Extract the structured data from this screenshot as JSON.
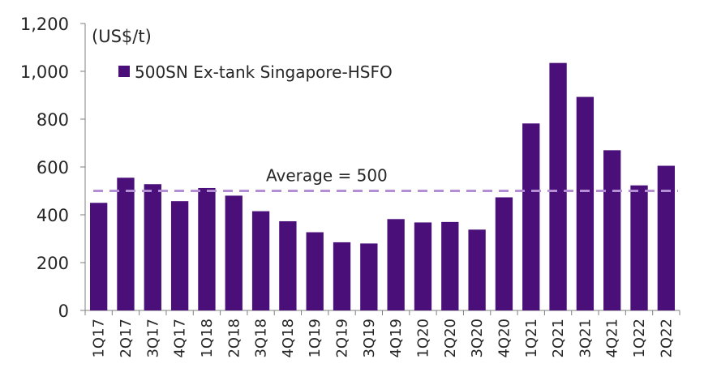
{
  "chart_data": {
    "type": "bar",
    "ylabel": "(US$/t)",
    "ylim": [
      0,
      1200
    ],
    "yticks": [
      "0",
      "200",
      "400",
      "600",
      "800",
      "1,000",
      "1,200"
    ],
    "ytick_values": [
      0,
      200,
      400,
      600,
      800,
      1000,
      1200
    ],
    "categories": [
      "1Q17",
      "2Q17",
      "3Q17",
      "4Q17",
      "1Q18",
      "2Q18",
      "3Q18",
      "4Q18",
      "1Q19",
      "2Q19",
      "3Q19",
      "4Q19",
      "1Q20",
      "2Q20",
      "3Q20",
      "4Q20",
      "1Q21",
      "2Q21",
      "3Q21",
      "4Q21",
      "1Q22",
      "2Q22"
    ],
    "series": [
      {
        "name": "500SN Ex-tank Singapore-HSFO",
        "color": "#4b0f7a",
        "values": [
          450,
          555,
          528,
          457,
          512,
          480,
          415,
          373,
          327,
          285,
          280,
          382,
          368,
          370,
          338,
          473,
          782,
          1035,
          893,
          670,
          523,
          605
        ]
      }
    ],
    "average": {
      "value": 500,
      "label": "Average = 500",
      "color": "#b58fd6"
    },
    "legend_position": "top-left",
    "grid": false
  }
}
